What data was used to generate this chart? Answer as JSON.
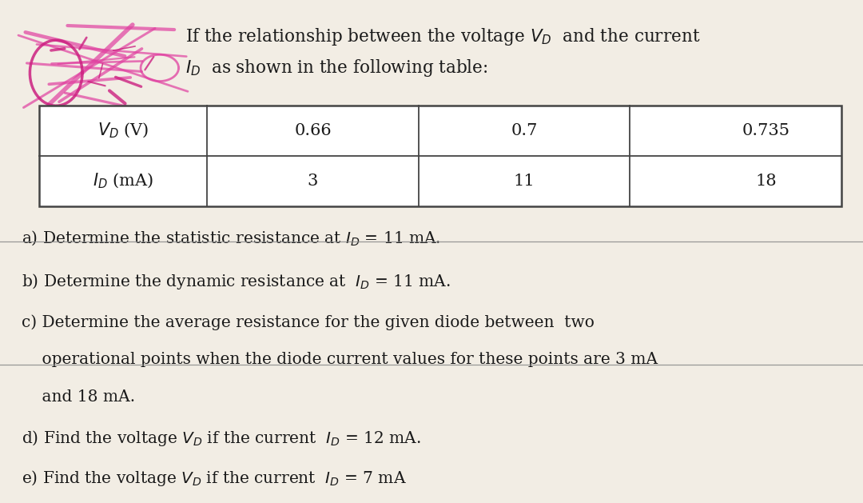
{
  "bg_color": "#f2ede4",
  "title_line1": "If the relationship between the voltage $V_D$  and the current",
  "title_line2": "$I_D$  as shown in the following table:",
  "table_headers": [
    "$V_D$ (V)",
    "0.66",
    "0.7",
    "0.735"
  ],
  "table_row2": [
    "$I_D$ (mA)",
    "3",
    "11",
    "18"
  ],
  "q_a": "a) Determine the statistic resistance at $I_D$ = 11 mA.",
  "q_b": "b) Determine the dynamic resistance at  $I_D$ = 11 mA.",
  "q_c1": "c) Determine the average resistance for the given diode between  two",
  "q_c2": "    operational points when the diode current values for these points are 3 mA",
  "q_c3": "    and 18 mA.",
  "q_d": "d) Find the voltage $V_D$ if the current  $I_D$ = 12 mA.",
  "q_e": "e) Find the voltage $V_D$ if the current  $I_D$ = 7 mA",
  "text_color": "#1a1a1a",
  "table_line_color": "#444444",
  "font_size_title": 15.5,
  "font_size_table": 15,
  "font_size_questions": 14.5
}
